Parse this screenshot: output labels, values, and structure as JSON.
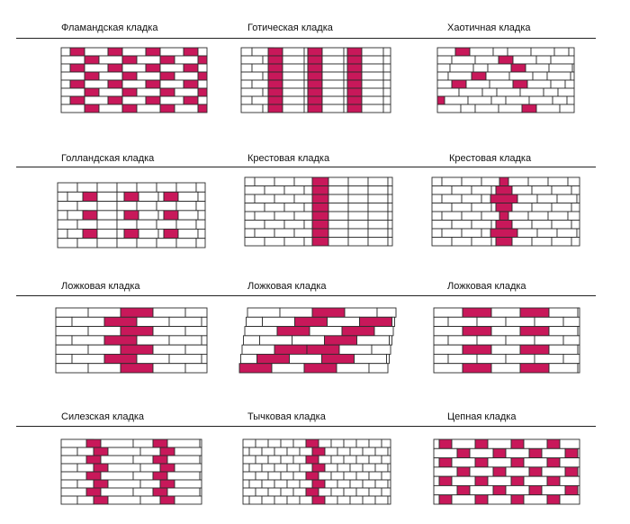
{
  "colors": {
    "accent": "#c8185a",
    "brick": "#ffffff",
    "mortar": "#2b2b2b",
    "rule": "#222222"
  },
  "rows": [
    {
      "cells": [
        {
          "label": "Фламандская кладка",
          "pattern": "flemish"
        },
        {
          "label": "Готическая кладка",
          "pattern": "gothic"
        },
        {
          "label": "Хаотичная кладка",
          "pattern": "chaotic"
        }
      ]
    },
    {
      "cells": [
        {
          "label": "Голландская кладка",
          "pattern": "dutch"
        },
        {
          "label": "Крестовая кладка",
          "pattern": "cross-stripe"
        },
        {
          "label": "Крестовая кладка",
          "pattern": "cross-diamond"
        }
      ]
    },
    {
      "cells": [
        {
          "label": "Ложковая кладка",
          "pattern": "stretcher-center"
        },
        {
          "label": "Ложковая кладка",
          "pattern": "stretcher-diagonal"
        },
        {
          "label": "Ложковая кладка",
          "pattern": "stretcher-double"
        }
      ]
    },
    {
      "cells": [
        {
          "label": "Силезская кладка",
          "pattern": "silesian"
        },
        {
          "label": "Тычковая кладка",
          "pattern": "header"
        },
        {
          "label": "Цепная кладка",
          "pattern": "chain"
        }
      ]
    }
  ]
}
